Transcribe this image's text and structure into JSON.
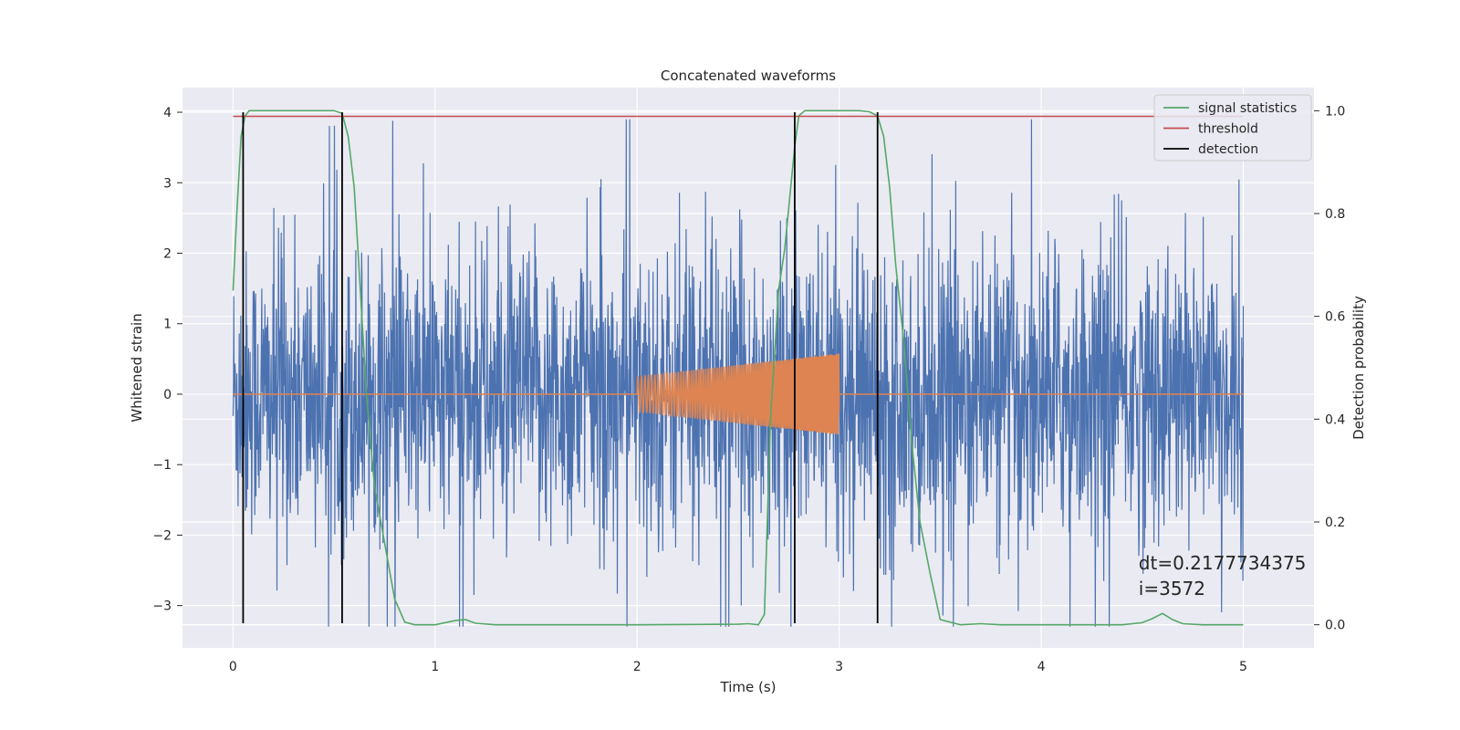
{
  "chart_data": {
    "type": "line",
    "title": "Concatenated waveforms",
    "xlabel": "Time (s)",
    "ylabel_left": "Whitened strain",
    "ylabel_right": "Detection probability",
    "xlim": [
      -0.25,
      5.35
    ],
    "ylim_left": [
      -3.6,
      4.35
    ],
    "ylim_right": [
      -0.045,
      1.045
    ],
    "xticks": [
      0,
      1,
      2,
      3,
      4,
      5
    ],
    "yticks_left": [
      -3,
      -2,
      -1,
      0,
      1,
      2,
      3,
      4
    ],
    "yticks_right": [
      0.0,
      0.2,
      0.4,
      0.6,
      0.8,
      1.0
    ],
    "xtick_labels": [
      "0",
      "1",
      "2",
      "3",
      "4",
      "5"
    ],
    "ytick_labels_left": [
      "−3",
      "−2",
      "−1",
      "0",
      "1",
      "2",
      "3",
      "4"
    ],
    "ytick_labels_right": [
      "0.0",
      "0.2",
      "0.4",
      "0.6",
      "0.8",
      "1.0"
    ],
    "grid": true,
    "legend_position": "top-right",
    "series": [
      {
        "name": "",
        "axis": "left",
        "kind": "noise",
        "color": "#4c72b0",
        "x_range": [
          0,
          5
        ],
        "amplitude_rms": 1.0,
        "y_range": [
          -3.3,
          3.9
        ]
      },
      {
        "name": "",
        "axis": "left",
        "kind": "chirp",
        "color": "#dd8452",
        "x_range": [
          0,
          5
        ],
        "chirp_start": 2.0,
        "chirp_end": 3.0,
        "envelope_start": 0.25,
        "envelope_end": 0.58
      },
      {
        "name": "signal statistics",
        "axis": "right",
        "color": "#55a868",
        "x": [
          0.0,
          0.02,
          0.04,
          0.06,
          0.08,
          0.1,
          0.2,
          0.3,
          0.4,
          0.5,
          0.54,
          0.57,
          0.6,
          0.63,
          0.66,
          0.7,
          0.75,
          0.8,
          0.85,
          0.9,
          1.0,
          1.1,
          1.15,
          1.2,
          1.3,
          1.5,
          2.0,
          2.5,
          2.55,
          2.6,
          2.63,
          2.66,
          2.7,
          2.73,
          2.76,
          2.78,
          2.8,
          2.83,
          2.86,
          2.9,
          3.0,
          3.1,
          3.15,
          3.19,
          3.22,
          3.25,
          3.28,
          3.32,
          3.36,
          3.4,
          3.45,
          3.5,
          3.6,
          3.7,
          3.8,
          4.0,
          4.4,
          4.5,
          4.55,
          4.6,
          4.65,
          4.7,
          4.8,
          5.0
        ],
        "y": [
          0.65,
          0.81,
          0.95,
          0.99,
          1.0,
          1.0,
          1.0,
          1.0,
          1.0,
          1.0,
          0.995,
          0.95,
          0.85,
          0.65,
          0.45,
          0.27,
          0.16,
          0.05,
          0.005,
          0.0,
          0.0,
          0.008,
          0.01,
          0.003,
          0.0,
          0.0,
          0.0,
          0.001,
          0.002,
          0.0,
          0.02,
          0.4,
          0.65,
          0.73,
          0.85,
          0.93,
          0.99,
          1.0,
          1.0,
          1.0,
          1.0,
          1.0,
          0.998,
          0.99,
          0.95,
          0.85,
          0.7,
          0.55,
          0.35,
          0.2,
          0.1,
          0.01,
          0.0,
          0.002,
          0.0,
          0.0,
          0.0,
          0.004,
          0.012,
          0.022,
          0.01,
          0.002,
          0.0,
          0.0
        ]
      },
      {
        "name": "threshold",
        "axis": "right",
        "color": "#c44e52",
        "x": [
          0,
          5
        ],
        "y": [
          0.989,
          0.989
        ]
      },
      {
        "name": "detection",
        "axis": "left",
        "kind": "vlines",
        "color": "#000000",
        "x": [
          0.05,
          0.54,
          2.78,
          3.19
        ],
        "y_range": [
          -3.25,
          4.0
        ]
      }
    ],
    "annotation": {
      "text_line1": "dt=0.2177734375",
      "text_line2": " i=3572",
      "x": 4.5,
      "y": 0.12
    }
  }
}
